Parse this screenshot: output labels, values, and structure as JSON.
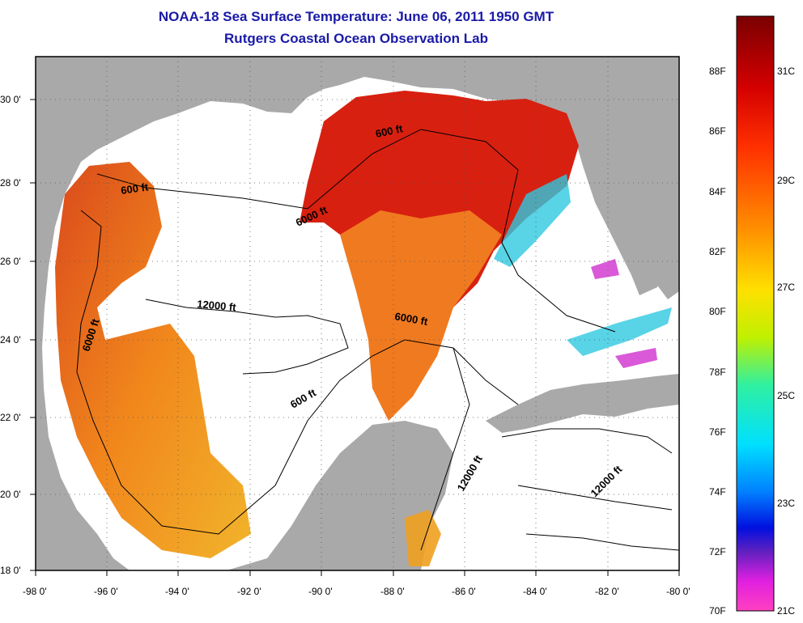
{
  "title": "NOAA-18 Sea Surface Temperature:  June 06, 2011 1950 GMT",
  "subtitle": "Rutgers Coastal Ocean Observation Lab",
  "map": {
    "lon_ticks": [
      "-98 0'",
      "-96 0'",
      "-94 0'",
      "-92 0'",
      "-90 0'",
      "-88 0'",
      "-86 0'",
      "-84 0'",
      "-82 0'",
      "-80 0'"
    ],
    "lat_ticks": [
      "30 0'",
      "28 0'",
      "26 0'",
      "24 0'",
      "22 0'",
      "20 0'",
      "18 0'"
    ],
    "lon_range": [
      -98,
      -80
    ],
    "lat_range": [
      18,
      31
    ],
    "contour_labels": [
      "600 ft",
      "600 ft",
      "6000 ft",
      "12000 ft",
      "6000 ft",
      "6000 ft",
      "600 ft",
      "12000 ft",
      "12000 ft"
    ],
    "colors": {
      "land": "#a9a9a9",
      "no_data": "#ffffff",
      "contour": "#000000",
      "title": "#1a1aa8"
    }
  },
  "colorbar": {
    "fahrenheit": [
      "88F",
      "86F",
      "84F",
      "82F",
      "80F",
      "78F",
      "76F",
      "74F",
      "72F",
      "70F"
    ],
    "celsius": [
      "31C",
      "29C",
      "27C",
      "25C",
      "23C",
      "21C"
    ],
    "range_f": [
      70,
      90
    ],
    "range_c": [
      21,
      32
    ]
  }
}
